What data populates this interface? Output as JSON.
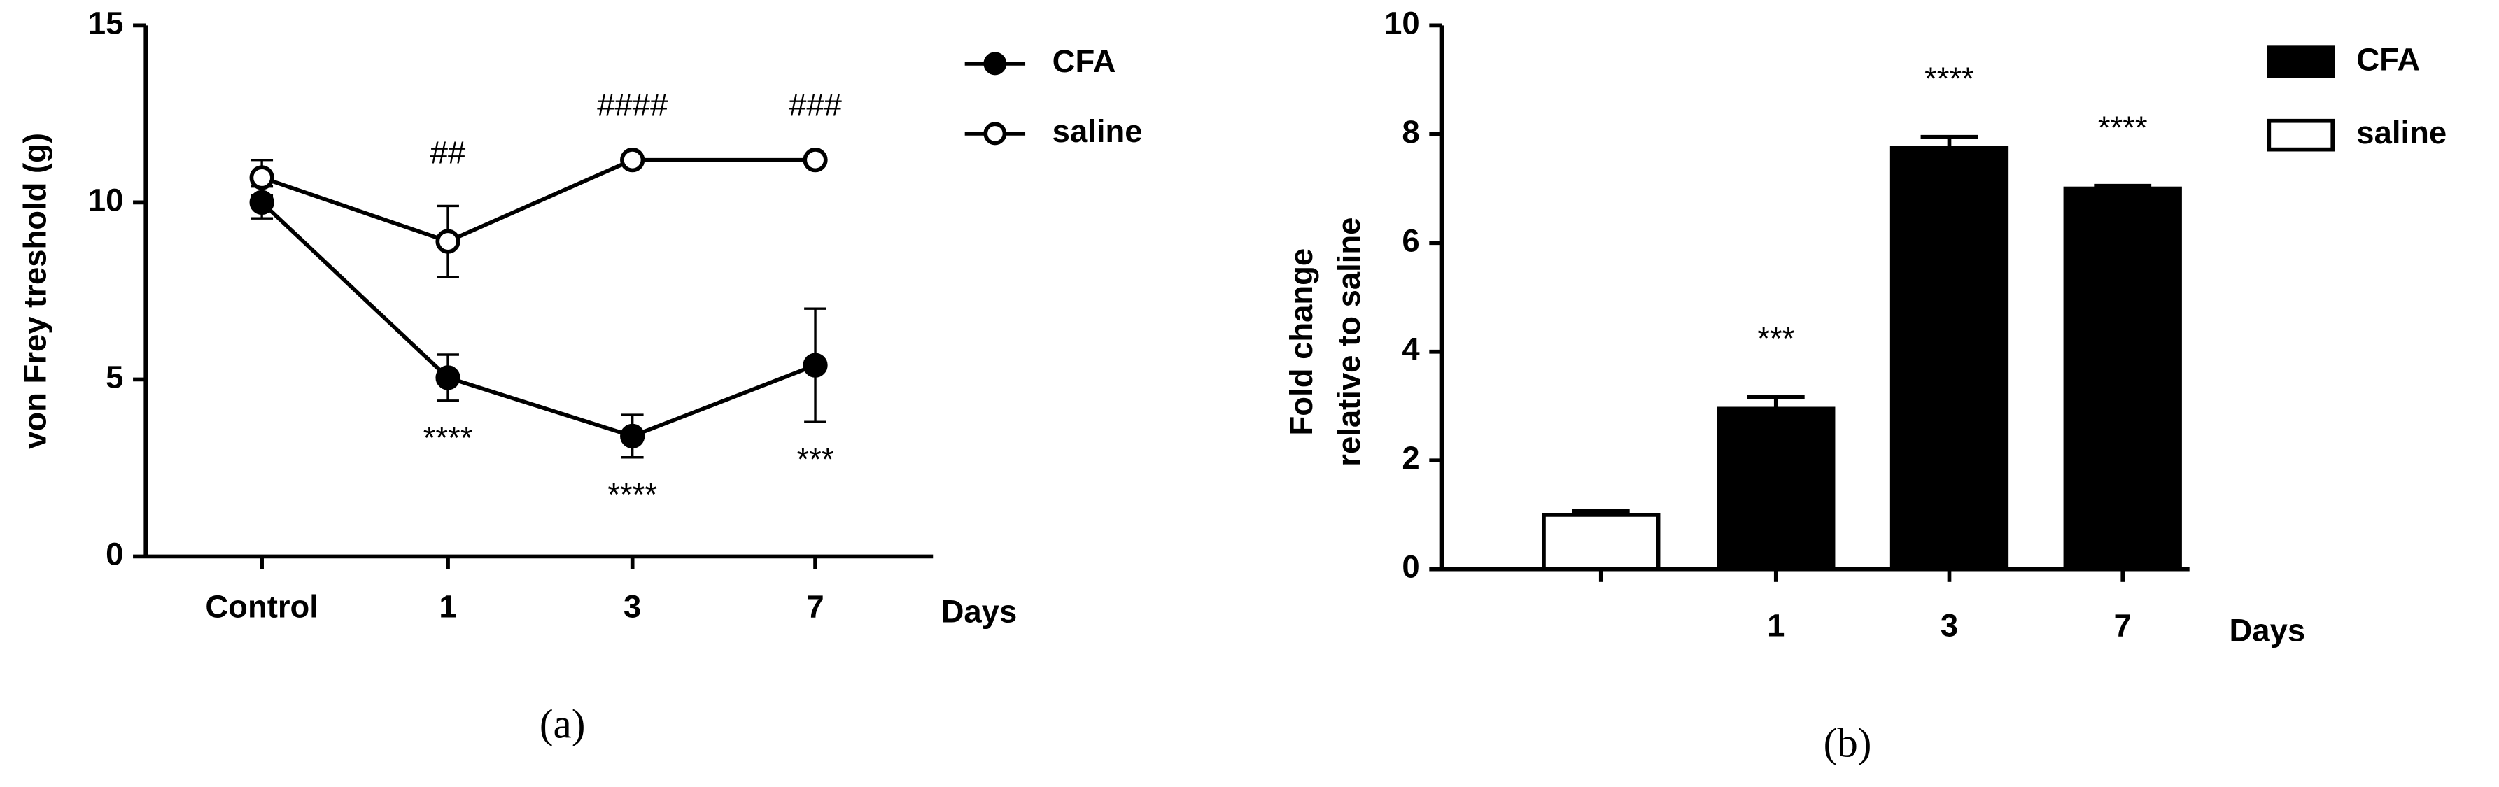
{
  "chart_data": [
    {
      "type": "line",
      "panel": "(a)",
      "ylabel": [
        "von Frey treshold (g)"
      ],
      "xlabel": "Days",
      "categories": [
        "Control",
        "1",
        "3",
        "7"
      ],
      "series": [
        {
          "name": "CFA",
          "color": "#000000",
          "values": [
            10.0,
            5.05,
            3.4,
            5.4
          ],
          "errors": [
            0.45,
            0.65,
            0.6,
            1.6
          ]
        },
        {
          "name": "saline",
          "color": "#ffffff",
          "values": [
            10.7,
            8.9,
            11.2,
            11.2
          ],
          "errors": [
            0.5,
            1.0,
            0.05,
            0.05
          ]
        }
      ],
      "annotations_above": [
        null,
        "##",
        "####",
        "###"
      ],
      "annotations_below": [
        null,
        "****",
        "****",
        "***"
      ],
      "ylim": [
        0,
        15
      ],
      "yticks": [
        0,
        5,
        10,
        15
      ]
    },
    {
      "type": "bar",
      "panel": "(b)",
      "ylabel": [
        "Fold change",
        "relative to saline"
      ],
      "xlabel": "Days",
      "categories": [
        null,
        "1",
        "3",
        "7"
      ],
      "series": [
        {
          "name": "CFA",
          "color": "#000000",
          "values": [
            null,
            2.95,
            7.75,
            7.0
          ],
          "errors": [
            null,
            0.22,
            0.2,
            0.05
          ]
        },
        {
          "name": "saline",
          "color": "#ffffff",
          "values": [
            1.0,
            null,
            null,
            null
          ],
          "errors": [
            0.07,
            null,
            null,
            null
          ]
        }
      ],
      "annotations_above": [
        null,
        "***",
        "****",
        "****"
      ],
      "ylim": [
        0,
        10
      ],
      "yticks": [
        0,
        2,
        4,
        6,
        8,
        10
      ]
    }
  ]
}
